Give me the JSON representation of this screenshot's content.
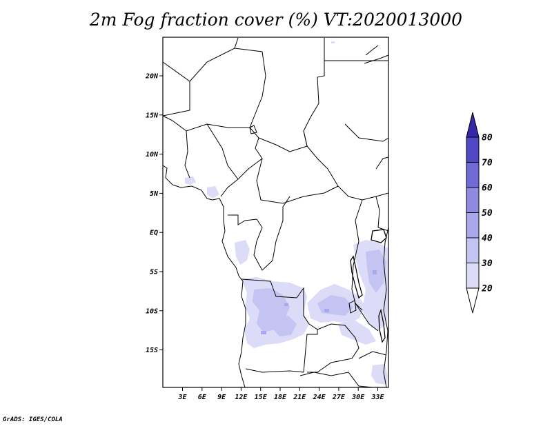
{
  "title": "2m Fog fraction cover (%) VT:2020013000",
  "credit": "GrADS: IGES/COLA",
  "lon_labels": [
    "3E",
    "6E",
    "9E",
    "12E",
    "15E",
    "18E",
    "21E",
    "24E",
    "27E",
    "30E",
    "33E"
  ],
  "lat_labels": [
    "20N",
    "15N",
    "10N",
    "5N",
    "EQ",
    "5S",
    "10S",
    "15S"
  ],
  "colorbar": {
    "levels": [
      "20",
      "30",
      "40",
      "50",
      "60",
      "70",
      "80"
    ],
    "colors": [
      "#dcdcf8",
      "#c4c4f2",
      "#aaa8ec",
      "#8e8ae2",
      "#706ad6",
      "#5048c4",
      "#3428a8"
    ]
  },
  "map_colors": {
    "fog_light": "#dcdcf8",
    "fog_mid": "#c4c4f2",
    "fog_dark": "#aaa8ec"
  }
}
